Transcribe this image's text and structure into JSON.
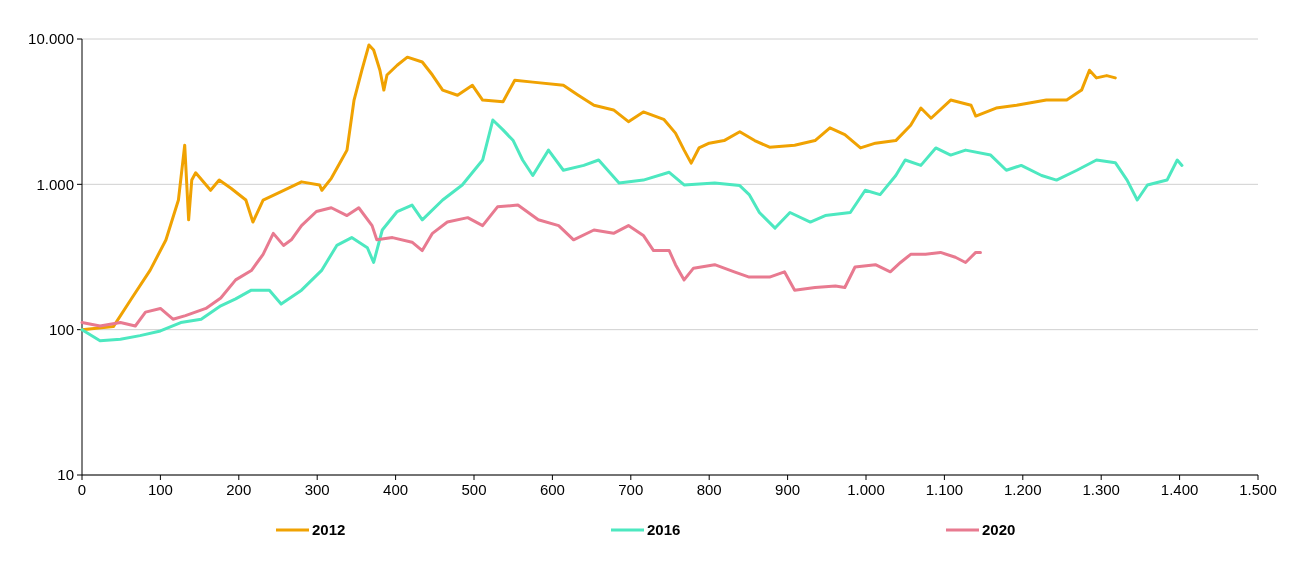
{
  "chart_data": {
    "type": "line",
    "log": "y",
    "grid": "y",
    "legend": "bottom",
    "xlim": [
      0,
      1500
    ],
    "xticks": [
      0,
      100,
      200,
      300,
      400,
      500,
      600,
      700,
      800,
      900,
      {
        "value": 1000,
        "label": "1.000"
      },
      {
        "value": 1100,
        "label": "1.100"
      },
      {
        "value": 1200,
        "label": "1.200"
      },
      {
        "value": 1300,
        "label": "1.300"
      },
      {
        "value": 1400,
        "label": "1.400"
      },
      {
        "value": 1500,
        "label": "1.500"
      }
    ],
    "ylim": [
      10,
      10000
    ],
    "yticks": [
      10,
      100,
      {
        "value": 1000,
        "label": "1.000"
      },
      {
        "value": 10000,
        "label": "10.000"
      }
    ],
    "series": [
      {
        "name": "2012",
        "color": "#f0a202",
        "x": [
          0,
          40,
          62,
          87,
          107,
          123,
          131,
          136,
          140,
          145,
          164,
          175,
          190,
          209,
          218,
          231,
          254,
          280,
          303,
          306,
          318,
          331,
          338,
          347,
          357,
          366,
          372,
          380,
          385,
          389,
          402,
          415,
          434,
          447,
          460,
          479,
          498,
          511,
          537,
          552,
          575,
          614,
          633,
          653,
          678,
          697,
          716,
          742,
          757,
          768,
          777,
          787,
          800,
          819,
          839,
          858,
          877,
          909,
          935,
          954,
          973,
          993,
          1012,
          1038,
          1057,
          1070,
          1083,
          1108,
          1134,
          1140,
          1166,
          1192,
          1230,
          1256,
          1275,
          1285,
          1294,
          1307,
          1318
        ],
        "values": [
          100,
          105,
          160,
          257,
          414,
          780,
          1860,
          570,
          1070,
          1200,
          910,
          1070,
          940,
          780,
          550,
          780,
          890,
          1040,
          990,
          910,
          1100,
          1470,
          1720,
          3800,
          6100,
          9100,
          8400,
          6100,
          4450,
          5650,
          6600,
          7500,
          6950,
          5650,
          4450,
          4100,
          4800,
          3800,
          3700,
          5200,
          5050,
          4800,
          4100,
          3500,
          3250,
          2700,
          3150,
          2800,
          2250,
          1720,
          1400,
          1780,
          1920,
          2000,
          2300,
          2000,
          1800,
          1860,
          2000,
          2450,
          2200,
          1780,
          1920,
          2000,
          2550,
          3350,
          2850,
          3800,
          3500,
          2950,
          3350,
          3500,
          3800,
          3800,
          4450,
          6100,
          5400,
          5600,
          5400
        ]
      },
      {
        "name": "2016",
        "color": "#4de8c0",
        "x": [
          0,
          23,
          49,
          74,
          100,
          126,
          152,
          177,
          196,
          216,
          239,
          254,
          280,
          306,
          325,
          344,
          364,
          372,
          383,
          402,
          421,
          434,
          460,
          485,
          511,
          524,
          537,
          550,
          562,
          575,
          595,
          614,
          640,
          659,
          685,
          716,
          749,
          768,
          807,
          839,
          851,
          864,
          884,
          903,
          929,
          948,
          980,
          999,
          1018,
          1038,
          1050,
          1070,
          1089,
          1108,
          1127,
          1159,
          1179,
          1198,
          1224,
          1243,
          1269,
          1294,
          1318,
          1333,
          1346,
          1359,
          1384,
          1397,
          1403
        ],
        "values": [
          100,
          84,
          86,
          91,
          98,
          112,
          118,
          146,
          163,
          187,
          187,
          150,
          187,
          257,
          380,
          430,
          366,
          290,
          485,
          650,
          720,
          570,
          780,
          990,
          1470,
          2770,
          2370,
          2000,
          1470,
          1150,
          1720,
          1250,
          1350,
          1470,
          1020,
          1070,
          1210,
          990,
          1020,
          980,
          850,
          640,
          500,
          640,
          550,
          610,
          640,
          910,
          850,
          1150,
          1470,
          1350,
          1780,
          1590,
          1720,
          1590,
          1250,
          1350,
          1150,
          1070,
          1250,
          1470,
          1410,
          1070,
          780,
          990,
          1070,
          1470,
          1350
        ]
      },
      {
        "name": "2020",
        "color": "#e87a90",
        "x": [
          0,
          23,
          49,
          68,
          81,
          100,
          116,
          132,
          158,
          177,
          196,
          216,
          231,
          244,
          257,
          267,
          280,
          299,
          318,
          338,
          353,
          370,
          376,
          396,
          421,
          434,
          447,
          466,
          492,
          511,
          530,
          556,
          582,
          608,
          627,
          653,
          678,
          697,
          716,
          729,
          749,
          757,
          768,
          780,
          807,
          832,
          851,
          877,
          896,
          909,
          935,
          961,
          973,
          986,
          1012,
          1031,
          1044,
          1057,
          1076,
          1095,
          1114,
          1127,
          1140,
          1146
        ],
        "values": [
          112,
          106,
          112,
          106,
          132,
          140,
          118,
          125,
          140,
          165,
          220,
          255,
          330,
          460,
          380,
          415,
          520,
          650,
          690,
          610,
          690,
          520,
          415,
          430,
          400,
          350,
          460,
          550,
          590,
          520,
          700,
          720,
          570,
          520,
          415,
          485,
          460,
          520,
          445,
          350,
          350,
          280,
          220,
          265,
          280,
          250,
          230,
          230,
          250,
          187,
          195,
          200,
          195,
          270,
          280,
          250,
          290,
          330,
          330,
          340,
          315,
          290,
          340,
          340
        ]
      }
    ]
  }
}
